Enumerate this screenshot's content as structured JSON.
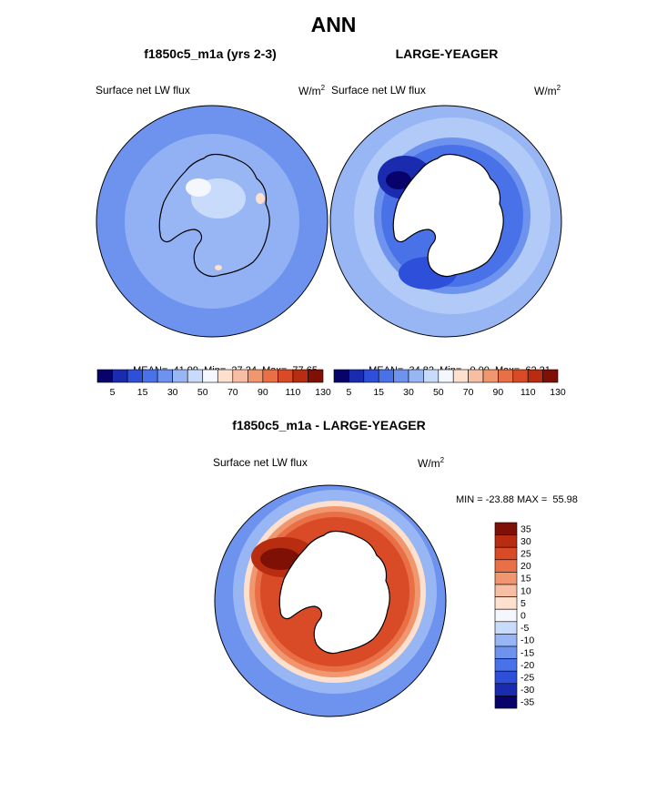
{
  "main_title": "ANN",
  "panels": {
    "left": {
      "case_title": "f1850c5_m1a (yrs 2-3)",
      "variable": "Surface net LW flux",
      "units_base": "W/m",
      "units_exp": "2",
      "stats": {
        "mean_label": "MEAN=",
        "mean": "41.99",
        "min_label": "Min=",
        "min": "27.24",
        "max_label": "Max=",
        "max": "77.65"
      }
    },
    "right": {
      "case_title": "LARGE-YEAGER",
      "variable": "Surface net LW flux",
      "units_base": "W/m",
      "units_exp": "2",
      "stats": {
        "mean_label": "MEAN=",
        "mean": "34.82",
        "min_label": "Min=",
        "min": "0.00",
        "max_label": "Max=",
        "max": "62.21"
      }
    },
    "diff": {
      "case_title": "f1850c5_m1a - LARGE-YEAGER",
      "variable": "Surface net LW flux",
      "units_base": "W/m",
      "units_exp": "2",
      "minmax": "MIN = -23.88 MAX =  55.98"
    }
  },
  "colorbar_abs": {
    "colors": [
      "#08036b",
      "#1a2bb0",
      "#2e4fd9",
      "#4a72e8",
      "#6d93ee",
      "#98b6f4",
      "#c9dbfa",
      "#f4f7fd",
      "#fde0ce",
      "#f8bea3",
      "#f1976f",
      "#e96f46",
      "#d94a26",
      "#b82c10",
      "#7e1005"
    ],
    "tick_labels": [
      "5",
      "15",
      "30",
      "50",
      "70",
      "90",
      "110",
      "130"
    ]
  },
  "colorbar_diff": {
    "colors": [
      "#7e1005",
      "#b82c10",
      "#d94a26",
      "#e96f46",
      "#f1976f",
      "#f8bea3",
      "#fde0ce",
      "#f4f7fd",
      "#c9dbfa",
      "#98b6f4",
      "#6d93ee",
      "#4a72e8",
      "#2e4fd9",
      "#1a2bb0",
      "#08036b"
    ],
    "tick_labels": [
      "35",
      "30",
      "25",
      "20",
      "15",
      "10",
      "5",
      "0",
      "-5",
      "-10",
      "-15",
      "-20",
      "-25",
      "-30",
      "-35"
    ]
  }
}
